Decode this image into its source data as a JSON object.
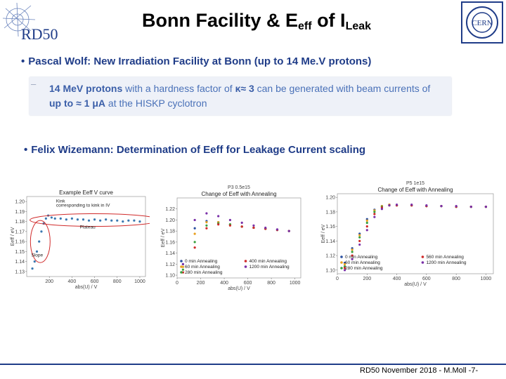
{
  "header": {
    "title_main": "Bonn Facility  &  E",
    "title_sub1": "eff",
    "title_mid": " of I",
    "title_sub2": "Leak",
    "logo_left_text": "RD50",
    "logo_right_text": "CERN"
  },
  "bullets": [
    {
      "text": "Pascal Wolf: New Irradiation Facility at Bonn (up to 14 Me.V protons)"
    },
    {
      "text": "Felix Wizemann: Determination of Eeff for Leakage Current scaling"
    }
  ],
  "quote": {
    "dash": "–",
    "part1": "14 MeV protons",
    "part2": " with a hardness factor of ",
    "part3": "κ≈ 3",
    "part4": " can be generated with beam currents of ",
    "part5": "up to ≈ 1 μA",
    "part6": " at the HISKP cyclotron"
  },
  "footer": {
    "text": "RD50 November 2018 - M.Moll  -7-"
  },
  "colors": {
    "accent": "#1f3c88",
    "quote_text": "#4a71b8",
    "quote_bg": "#eef1f8"
  },
  "chart_data": [
    {
      "type": "scatter",
      "title": "Example Eeff V curve",
      "xlabel": "abs(U) / V",
      "ylabel": "Eeff / eV",
      "xlim": [
        0,
        1050
      ],
      "ylim": [
        1.125,
        1.205
      ],
      "xticks": [
        "200",
        "400",
        "600",
        "800",
        "1000"
      ],
      "yticks": [
        "1.13",
        "1.14",
        "1.15",
        "1.16",
        "1.17",
        "1.18",
        "1.19",
        "1.20"
      ],
      "annotations": [
        "Kink",
        "corresponding to kink in IV",
        "Plateau",
        "Slope"
      ],
      "series": [
        {
          "color": "#3a78b0",
          "x": [
            50,
            70,
            90,
            110,
            130,
            150,
            170,
            190,
            220,
            250,
            300,
            350,
            400,
            450,
            500,
            550,
            600,
            650,
            700,
            750,
            800,
            850,
            900,
            950,
            1000
          ],
          "y": [
            1.133,
            1.14,
            1.15,
            1.16,
            1.17,
            1.178,
            1.183,
            1.186,
            1.184,
            1.183,
            1.183,
            1.182,
            1.183,
            1.182,
            1.182,
            1.181,
            1.182,
            1.181,
            1.182,
            1.181,
            1.181,
            1.18,
            1.181,
            1.181,
            1.18
          ]
        }
      ]
    },
    {
      "type": "scatter",
      "title": "Change of Eeff with Annealing",
      "subtitle": "P3 0.5e15",
      "xlabel": "abs(U) / V",
      "ylabel": "Eeff / eV",
      "xlim": [
        0,
        1050
      ],
      "ylim": [
        1.095,
        1.24
      ],
      "xticks": [
        "0",
        "200",
        "400",
        "600",
        "800",
        "1000"
      ],
      "yticks": [
        "1.10",
        "1.12",
        "1.14",
        "1.16",
        "1.18",
        "1.20",
        "1.22"
      ],
      "legend": "bottom",
      "series": [
        {
          "name": "0 min Annealing",
          "color": "#2a4fa0",
          "x": [
            50,
            150,
            250,
            350,
            450,
            550,
            650,
            750,
            850,
            950
          ],
          "y": [
            1.12,
            1.185,
            1.198,
            1.196,
            1.192,
            1.188,
            1.186,
            1.184,
            1.182,
            1.18
          ]
        },
        {
          "name": "60 min Annealing",
          "color": "#e8a020",
          "x": [
            50,
            150,
            250,
            350,
            450,
            550,
            650,
            750,
            850,
            950
          ],
          "y": [
            1.115,
            1.175,
            1.196,
            1.196,
            1.192,
            1.188,
            1.186,
            1.184,
            1.182,
            1.18
          ]
        },
        {
          "name": "280 min Annealing",
          "color": "#3aa040",
          "x": [
            50,
            150,
            250,
            350,
            450,
            550,
            650,
            750,
            850,
            950
          ],
          "y": [
            1.11,
            1.16,
            1.19,
            1.194,
            1.192,
            1.188,
            1.186,
            1.184,
            1.182,
            1.18
          ]
        },
        {
          "name": "400 min Annealing",
          "color": "#d02a2a",
          "x": [
            50,
            150,
            250,
            350,
            450,
            550,
            650,
            750,
            850,
            950
          ],
          "y": [
            1.105,
            1.15,
            1.185,
            1.192,
            1.19,
            1.188,
            1.186,
            1.184,
            1.182,
            1.18
          ]
        },
        {
          "name": "1200 min Annealing",
          "color": "#7a30a8",
          "x": [
            50,
            150,
            250,
            350,
            450,
            550,
            650,
            750,
            850,
            950
          ],
          "y": [
            1.12,
            1.2,
            1.212,
            1.207,
            1.2,
            1.195,
            1.19,
            1.186,
            1.183,
            1.18
          ]
        }
      ]
    },
    {
      "type": "scatter",
      "title": "Change of Eeff with Annealing",
      "subtitle": "P5 1e15",
      "xlabel": "abs(U) / V",
      "ylabel": "Eeff / eV",
      "xlim": [
        0,
        1050
      ],
      "ylim": [
        1.095,
        1.205
      ],
      "xticks": [
        "0",
        "200",
        "400",
        "600",
        "800",
        "1000"
      ],
      "yticks": [
        "1.10",
        "1.12",
        "1.14",
        "1.16",
        "1.18",
        "1.20"
      ],
      "legend": "bottom",
      "series": [
        {
          "name": "0 min Annealing",
          "color": "#2a4fa0",
          "x": [
            50,
            100,
            150,
            200,
            250,
            300,
            350,
            400,
            500,
            600,
            700,
            800,
            900,
            1000
          ],
          "y": [
            1.11,
            1.13,
            1.15,
            1.17,
            1.183,
            1.188,
            1.19,
            1.189,
            1.189,
            1.188,
            1.188,
            1.187,
            1.187,
            1.187
          ]
        },
        {
          "name": "60 min Annealing",
          "color": "#e8a020",
          "x": [
            50,
            100,
            150,
            200,
            250,
            300,
            350,
            400,
            500,
            600,
            700,
            800,
            900,
            1000
          ],
          "y": [
            1.108,
            1.128,
            1.148,
            1.168,
            1.182,
            1.188,
            1.19,
            1.189,
            1.189,
            1.188,
            1.188,
            1.187,
            1.187,
            1.187
          ]
        },
        {
          "name": "280 min Annealing",
          "color": "#3aa040",
          "x": [
            50,
            100,
            150,
            200,
            250,
            300,
            350,
            400,
            500,
            600,
            700,
            800,
            900,
            1000
          ],
          "y": [
            1.105,
            1.125,
            1.145,
            1.165,
            1.18,
            1.187,
            1.189,
            1.189,
            1.189,
            1.188,
            1.188,
            1.187,
            1.187,
            1.187
          ]
        },
        {
          "name": "560 min Annealing",
          "color": "#d02a2a",
          "x": [
            50,
            100,
            150,
            200,
            250,
            300,
            350,
            400,
            500,
            600,
            700,
            800,
            900,
            1000
          ],
          "y": [
            1.103,
            1.12,
            1.14,
            1.16,
            1.177,
            1.186,
            1.189,
            1.189,
            1.189,
            1.188,
            1.188,
            1.187,
            1.187,
            1.187
          ]
        },
        {
          "name": "1200 min Annealing",
          "color": "#7a30a8",
          "x": [
            50,
            100,
            150,
            200,
            250,
            300,
            350,
            400,
            500,
            600,
            700,
            800,
            900,
            1000
          ],
          "y": [
            1.1,
            1.115,
            1.135,
            1.155,
            1.173,
            1.184,
            1.189,
            1.19,
            1.19,
            1.189,
            1.188,
            1.188,
            1.187,
            1.187
          ]
        }
      ]
    }
  ]
}
